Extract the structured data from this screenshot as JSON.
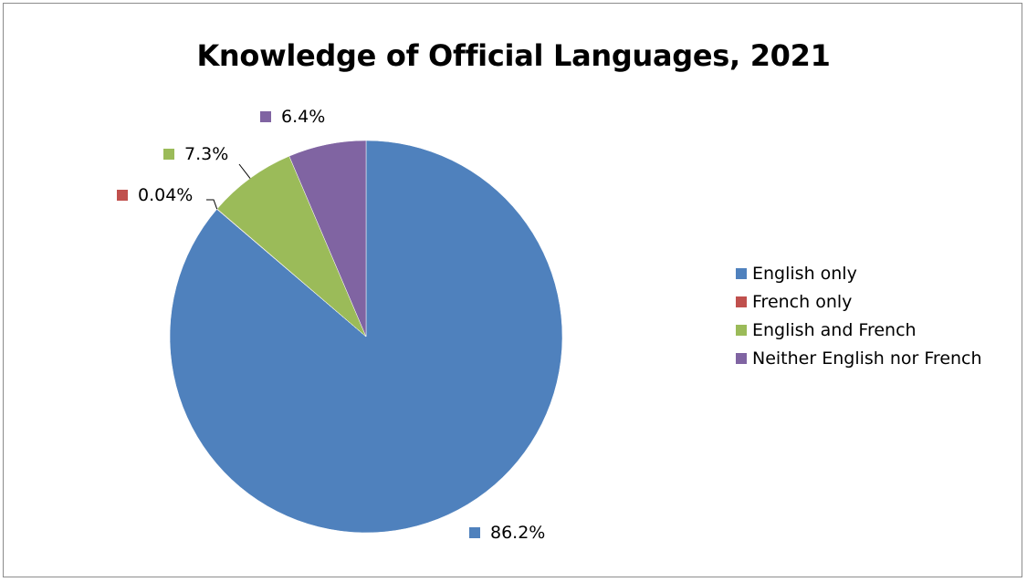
{
  "chart_data": {
    "type": "pie",
    "title": "Knowledge of Official Languages, 2021",
    "legend_position": "right",
    "slices": [
      {
        "name": "English only",
        "value": 86.2,
        "label": "86.2%",
        "color": "#4f81bd"
      },
      {
        "name": "French only",
        "value": 0.04,
        "label": "0.04%",
        "color": "#c0504d"
      },
      {
        "name": "English and French",
        "value": 7.3,
        "label": "7.3%",
        "color": "#9bbb59"
      },
      {
        "name": "Neither English nor French",
        "value": 6.4,
        "label": "6.4%",
        "color": "#8064a2"
      }
    ]
  }
}
